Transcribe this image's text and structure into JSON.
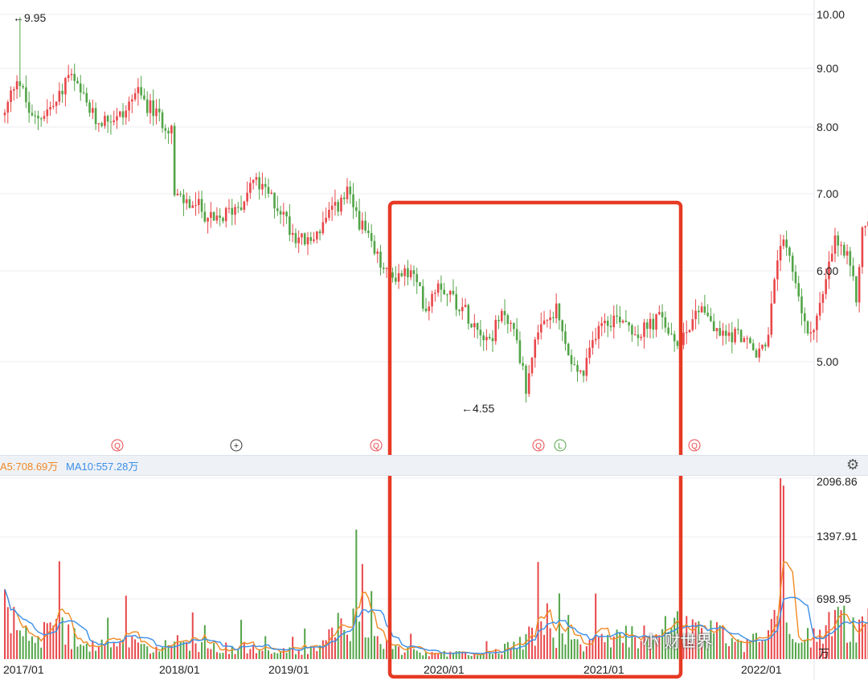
{
  "chart_data": {
    "type": "candlestick",
    "x_labels": [
      "2017/01",
      "2018/01",
      "2019/01",
      "2020/01",
      "2021/01",
      "2022/01"
    ],
    "y_labels": [
      "10.00",
      "9.00",
      "8.00",
      "7.00",
      "6.00",
      "5.00"
    ],
    "ylim": [
      4.4,
      10.2
    ],
    "volume_labels": [
      "2096.86",
      "1397.91",
      "698.95"
    ],
    "volume_unit": "万",
    "colors": {
      "up": "#e8474a",
      "down": "#52a447",
      "ma5": "#f08a24",
      "ma10": "#3b8fe8",
      "highlight": "#e63a24"
    },
    "annotations": {
      "high": "←9.95",
      "low": "←4.55"
    },
    "ma5_label": "A5:708.69万",
    "ma10_label": "MA10:557.28万",
    "event_markers": [
      "Q",
      "+",
      "Q",
      "Q",
      "L",
      "Q"
    ],
    "watermark": "小 财世界",
    "price_path": [
      [
        "2016-12-05",
        8.2
      ],
      [
        "2017-01-02",
        8.9
      ],
      [
        "2017-02-06",
        8.1
      ],
      [
        "2017-04-03",
        8.4
      ],
      [
        "2017-05-01",
        8.9
      ],
      [
        "2017-07-03",
        8.1
      ],
      [
        "2017-09-04",
        8.2
      ],
      [
        "2017-10-02",
        8.6
      ],
      [
        "2017-12-04",
        8.1
      ],
      [
        "2017-12-25",
        8.0
      ],
      [
        "2018-01-01",
        6.95
      ],
      [
        "2018-03-05",
        6.8
      ],
      [
        "2018-04-02",
        6.6
      ],
      [
        "2018-06-04",
        6.9
      ],
      [
        "2018-07-02",
        7.2
      ],
      [
        "2018-09-03",
        6.8
      ],
      [
        "2018-10-01",
        6.5
      ],
      [
        "2018-11-05",
        6.35
      ],
      [
        "2019-01-07",
        6.8
      ],
      [
        "2019-02-04",
        7.0
      ],
      [
        "2019-03-04",
        6.65
      ],
      [
        "2019-04-01",
        6.3
      ],
      [
        "2019-05-06",
        5.95
      ],
      [
        "2019-07-01",
        5.98
      ],
      [
        "2019-08-05",
        5.6
      ],
      [
        "2019-09-02",
        5.9
      ],
      [
        "2019-11-04",
        5.55
      ],
      [
        "2019-12-30",
        5.25
      ],
      [
        "2020-02-03",
        5.55
      ],
      [
        "2020-03-02",
        5.25
      ],
      [
        "2020-03-23",
        4.7
      ],
      [
        "2020-04-06",
        5.1
      ],
      [
        "2020-05-04",
        5.4
      ],
      [
        "2020-06-01",
        5.55
      ],
      [
        "2020-07-06",
        4.95
      ],
      [
        "2020-08-03",
        4.85
      ],
      [
        "2020-09-07",
        5.45
      ],
      [
        "2020-11-02",
        5.5
      ],
      [
        "2020-12-07",
        5.3
      ],
      [
        "2021-02-01",
        5.5
      ],
      [
        "2021-03-01",
        5.15
      ],
      [
        "2021-05-03",
        5.65
      ],
      [
        "2021-06-07",
        5.3
      ],
      [
        "2021-08-02",
        5.3
      ],
      [
        "2021-09-06",
        5.05
      ],
      [
        "2021-10-04",
        5.3
      ],
      [
        "2021-11-01",
        6.4
      ],
      [
        "2021-12-06",
        5.9
      ],
      [
        "2022-01-03",
        5.25
      ],
      [
        "2022-02-07",
        5.7
      ],
      [
        "2022-03-07",
        6.4
      ],
      [
        "2022-04-04",
        6.15
      ],
      [
        "2022-04-25",
        5.7
      ],
      [
        "2022-05-09",
        6.5
      ],
      [
        "2022-06-06",
        6.85
      ],
      [
        "2022-06-20",
        7.0
      ]
    ],
    "volume_path": [
      [
        "2016-12-05",
        650
      ],
      [
        "2017-02-06",
        300
      ],
      [
        "2017-04-03",
        500
      ],
      [
        "2017-06-05",
        180
      ],
      [
        "2017-09-04",
        260
      ],
      [
        "2017-11-06",
        120
      ],
      [
        "2018-01-01",
        230
      ],
      [
        "2018-03-05",
        170
      ],
      [
        "2018-06-04",
        160
      ],
      [
        "2018-09-03",
        120
      ],
      [
        "2018-12-03",
        150
      ],
      [
        "2019-02-04",
        620
      ],
      [
        "2019-04-01",
        300
      ],
      [
        "2019-06-03",
        120
      ],
      [
        "2019-09-02",
        80
      ],
      [
        "2019-12-30",
        90
      ],
      [
        "2020-03-02",
        200
      ],
      [
        "2020-04-06",
        450
      ],
      [
        "2020-06-01",
        250
      ],
      [
        "2020-08-03",
        250
      ],
      [
        "2020-10-05",
        360
      ],
      [
        "2020-12-07",
        300
      ],
      [
        "2021-02-01",
        400
      ],
      [
        "2021-04-05",
        500
      ],
      [
        "2021-06-07",
        350
      ],
      [
        "2021-08-02",
        200
      ],
      [
        "2021-10-04",
        300
      ],
      [
        "2021-11-01",
        800
      ],
      [
        "2021-12-06",
        450
      ],
      [
        "2022-01-03",
        300
      ],
      [
        "2022-03-07",
        600
      ],
      [
        "2022-05-09",
        400
      ],
      [
        "2022-06-20",
        620
      ]
    ],
    "highlight_range": [
      "2019-09-02",
      "2021-09-06"
    ]
  }
}
